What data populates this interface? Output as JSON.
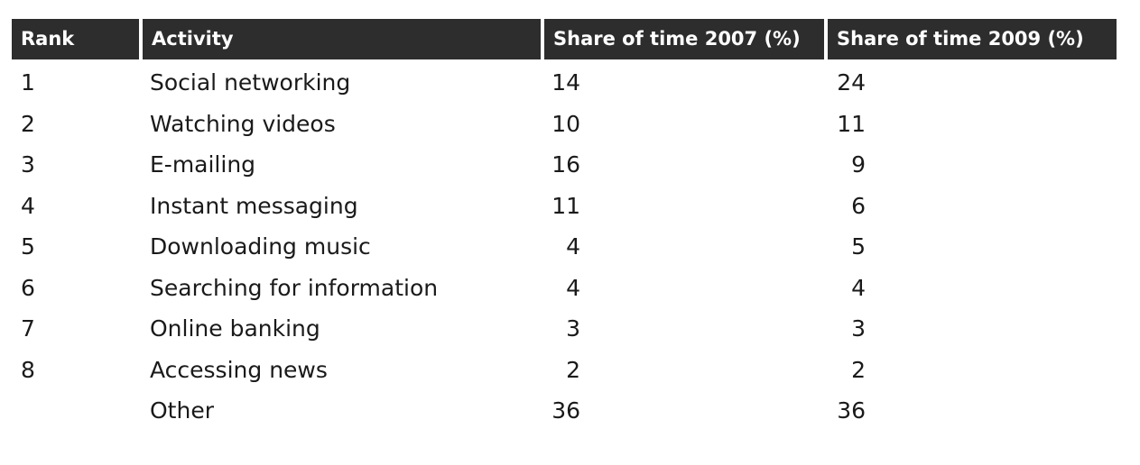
{
  "chart_data": {
    "type": "table",
    "columns": [
      "Rank",
      "Activity",
      "Share of time 2007 (%)",
      "Share of time 2009 (%)"
    ],
    "rows": [
      {
        "rank": "1",
        "activity": "Social networking",
        "share_2007": "14",
        "share_2009": "24"
      },
      {
        "rank": "2",
        "activity": "Watching videos",
        "share_2007": "10",
        "share_2009": "11"
      },
      {
        "rank": "3",
        "activity": "E-mailing",
        "share_2007": "16",
        "share_2009": "9"
      },
      {
        "rank": "4",
        "activity": "Instant messaging",
        "share_2007": "11",
        "share_2009": "6"
      },
      {
        "rank": "5",
        "activity": "Downloading music",
        "share_2007": "4",
        "share_2009": "5"
      },
      {
        "rank": "6",
        "activity": "Searching for information",
        "share_2007": "4",
        "share_2009": "4"
      },
      {
        "rank": "7",
        "activity": "Online banking",
        "share_2007": "3",
        "share_2009": "3"
      },
      {
        "rank": "8",
        "activity": "Accessing news",
        "share_2007": "2",
        "share_2009": "2"
      },
      {
        "rank": "",
        "activity": "Other",
        "share_2007": "36",
        "share_2009": "36"
      }
    ],
    "header_bg_color": "#2d2d2d",
    "header_text_color": "#ffffff"
  }
}
